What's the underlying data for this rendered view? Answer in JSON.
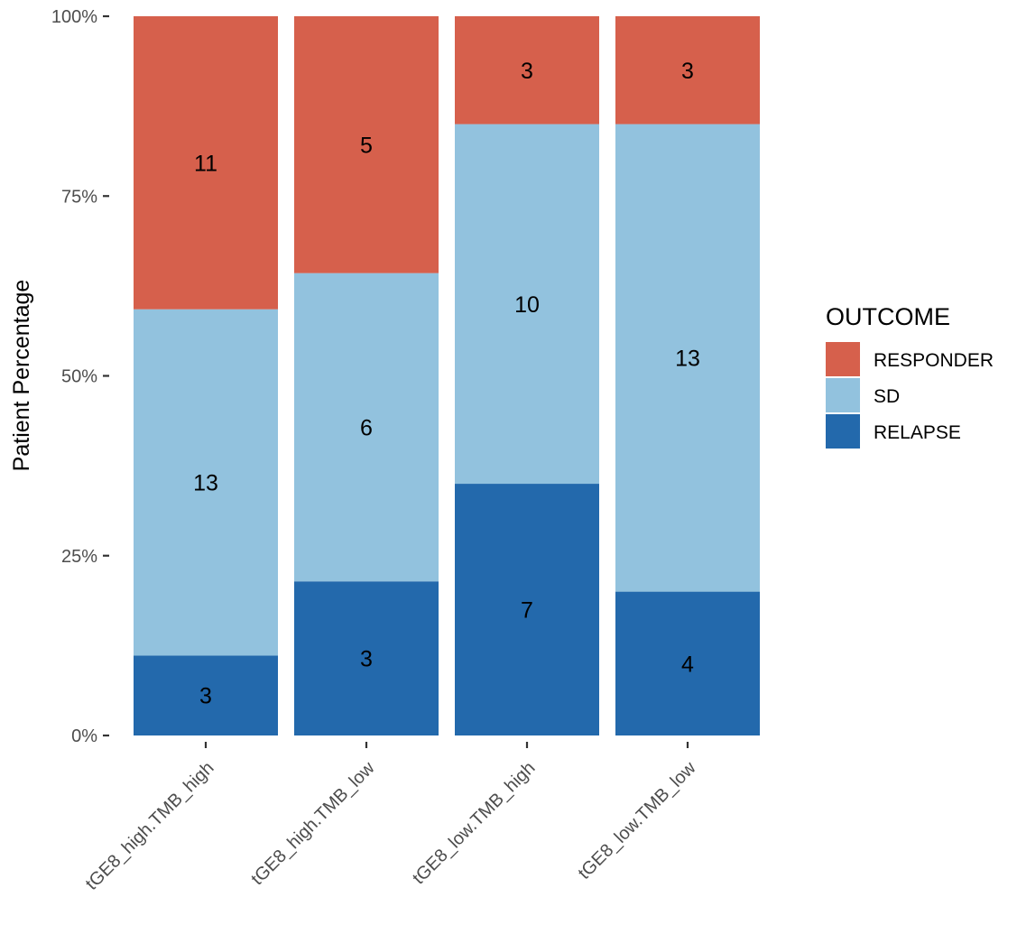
{
  "chart_data": {
    "type": "bar",
    "stacked": "percent",
    "ylabel": "Patient Percentage",
    "xlabel": "",
    "ylim": [
      0,
      100
    ],
    "y_ticks": [
      "0%",
      "25%",
      "50%",
      "75%",
      "100%"
    ],
    "categories": [
      "tGE8_high.TMB_high",
      "tGE8_high.TMB_low",
      "tGE8_low.TMB_high",
      "tGE8_low.TMB_low"
    ],
    "series": [
      {
        "name": "RELAPSE",
        "color": "#2369AC",
        "values": [
          3,
          3,
          7,
          4
        ]
      },
      {
        "name": "SD",
        "color": "#92C2DE",
        "values": [
          13,
          6,
          10,
          13
        ]
      },
      {
        "name": "RESPONDER",
        "color": "#D6604C",
        "values": [
          11,
          5,
          3,
          3
        ]
      }
    ],
    "legend": {
      "title": "OUTCOME",
      "position": "right",
      "order": [
        "RESPONDER",
        "SD",
        "RELAPSE"
      ]
    },
    "grid": false
  }
}
